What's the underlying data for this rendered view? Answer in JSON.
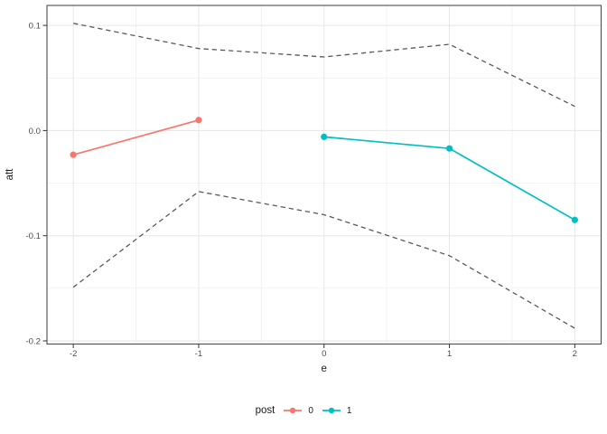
{
  "colors": {
    "background": "#FFFFFF",
    "panel_border": "#4D4D4D",
    "grid_major": "#E6E6E6",
    "grid_minor": "#F2F2F2",
    "tick_mark": "#333333",
    "tick_label": "#4D4D4D",
    "axis_title": "#1A1A1A",
    "ci_dashed": "#595959",
    "post0": "#F8766D",
    "post1": "#00BFC4"
  },
  "chart_data": {
    "type": "line",
    "title": "",
    "xlabel": "e",
    "ylabel": "att",
    "xlim": [
      -2.21,
      2.21
    ],
    "ylim": [
      -0.203,
      0.119
    ],
    "x_ticks": [
      -2,
      -1,
      0,
      1,
      2
    ],
    "x_tick_labels": [
      "-2",
      "-1",
      "0",
      "1",
      "2"
    ],
    "y_ticks": [
      0.1,
      0,
      -0.1,
      -0.2
    ],
    "y_tick_labels": [
      "0.1",
      "0.0",
      "-0.1",
      "-0.2"
    ],
    "x_minor_ticks": [
      -1.5,
      -0.5,
      0.5,
      1.5
    ],
    "y_minor_ticks": [
      0.05,
      -0.05,
      -0.15
    ],
    "grid": true,
    "legend_position": "bottom",
    "legend_title": "post",
    "series": [
      {
        "name": "post-0-estimate",
        "legend_label": "0",
        "type": "line+points",
        "dash": "solid",
        "color": "#F8766D",
        "x": [
          -2,
          -1
        ],
        "y": [
          -0.023,
          0.01
        ]
      },
      {
        "name": "post-1-estimate",
        "legend_label": "1",
        "type": "line+points",
        "dash": "solid",
        "color": "#00BFC4",
        "x": [
          0,
          1,
          2
        ],
        "y": [
          -0.006,
          -0.017,
          -0.085
        ]
      },
      {
        "name": "confidence-band-upper",
        "type": "line",
        "dash": "dashed",
        "color": "#595959",
        "x": [
          -2,
          -1,
          0,
          1,
          2
        ],
        "y": [
          0.102,
          0.078,
          0.07,
          0.082,
          0.023
        ]
      },
      {
        "name": "confidence-band-lower",
        "type": "line",
        "dash": "dashed",
        "color": "#595959",
        "x": [
          -2,
          -1,
          0,
          1,
          2
        ],
        "y": [
          -0.149,
          -0.058,
          -0.08,
          -0.119,
          -0.188
        ]
      }
    ]
  },
  "legend": {
    "title": "post",
    "items": [
      {
        "label": "0",
        "color": "#F8766D"
      },
      {
        "label": "1",
        "color": "#00BFC4"
      }
    ]
  }
}
